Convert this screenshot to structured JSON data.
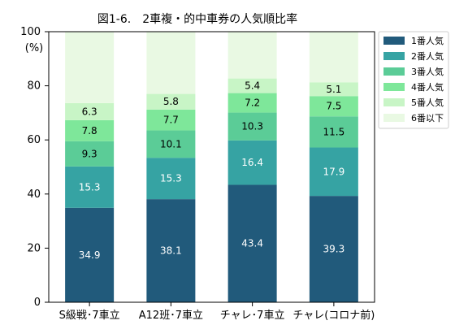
{
  "chart_data": {
    "type": "bar",
    "stacked": true,
    "title": "図1-6.　2車複・的中車券の人気順比率",
    "ylabel": "(%)",
    "ylim": [
      0,
      100
    ],
    "yticks": [
      0,
      20,
      40,
      60,
      80,
      100
    ],
    "grid": false,
    "legend_position": "right",
    "categories": [
      "S級戦･7車立",
      "A12班･7車立",
      "チャレ･7車立",
      "チャレ(コロナ前)"
    ],
    "series": [
      {
        "name": "1番人気",
        "color": "#215a7b",
        "label_color": "#ffffff",
        "values": [
          34.9,
          38.1,
          43.4,
          39.3
        ]
      },
      {
        "name": "2番人気",
        "color": "#36a3a3",
        "label_color": "#ffffff",
        "values": [
          15.3,
          15.3,
          16.4,
          17.9
        ]
      },
      {
        "name": "3番人気",
        "color": "#5bcc97",
        "label_color": "#000000",
        "values": [
          9.3,
          10.1,
          10.3,
          11.5
        ]
      },
      {
        "name": "4番人気",
        "color": "#7ee79a",
        "label_color": "#000000",
        "values": [
          7.8,
          7.7,
          7.2,
          7.5
        ]
      },
      {
        "name": "5番人気",
        "color": "#c8f5c6",
        "label_color": "#000000",
        "values": [
          6.3,
          5.8,
          5.4,
          5.1
        ]
      },
      {
        "name": "6番以下",
        "color": "#e9f9e3",
        "label_color": "#000000",
        "values": [
          26.4,
          23.0,
          17.3,
          18.7
        ],
        "show_labels": false
      }
    ]
  }
}
